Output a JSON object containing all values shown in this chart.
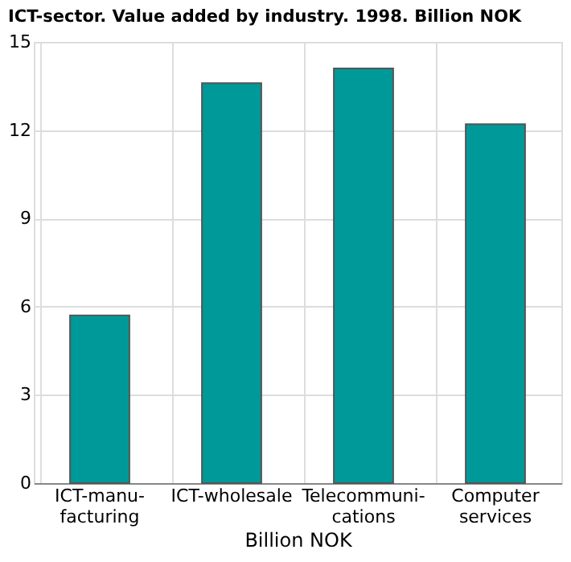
{
  "chart_data": {
    "type": "bar",
    "title": "ICT-sector. Value added by industry. 1998. Billion NOK",
    "xlabel": "Billion NOK",
    "categories": [
      "ICT-manu-\nfacturing",
      "ICT-wholesale",
      "Telecommuni-\ncations",
      "Computer\nservices"
    ],
    "values": [
      5.7,
      13.6,
      14.1,
      12.2
    ],
    "color": "#009999",
    "ylim": [
      0,
      15
    ],
    "yticks": [
      0,
      3,
      6,
      9,
      12,
      15
    ],
    "grid": true
  }
}
